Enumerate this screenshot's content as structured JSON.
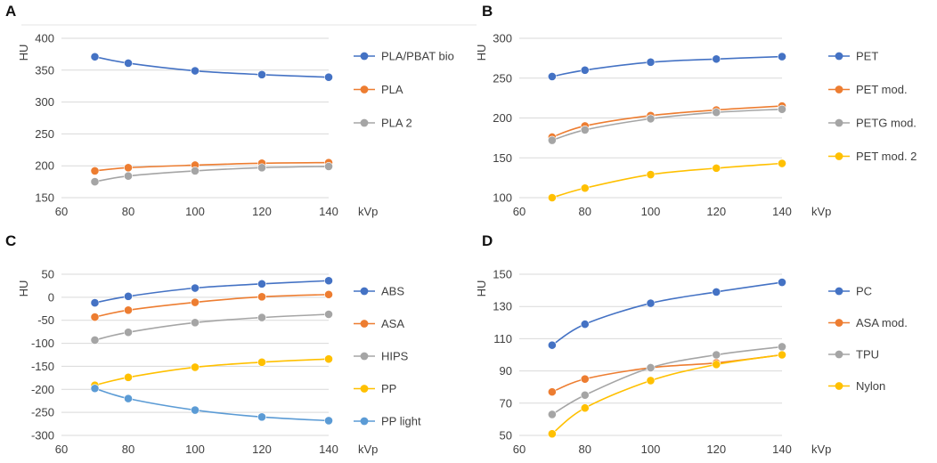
{
  "colors": {
    "blue": "#4472C4",
    "orange": "#ED7D31",
    "gray": "#A5A5A5",
    "yellow": "#FFC000",
    "lightblue": "#5B9BD5",
    "grid": "#D9D9D9"
  },
  "chart_data": [
    {
      "panel": "A",
      "type": "line",
      "xlabel": "kVp",
      "ylabel": "HU",
      "x": [
        70,
        80,
        100,
        120,
        140
      ],
      "xticks": [
        60,
        80,
        100,
        120,
        140
      ],
      "xlim": [
        60,
        140
      ],
      "ylim": [
        150,
        400
      ],
      "yticks": [
        150,
        200,
        250,
        300,
        350,
        400
      ],
      "grid": "horizontal",
      "legend": "right",
      "series": [
        {
          "name": "PLA/PBAT bio",
          "color": "blue",
          "values": [
            371,
            361,
            349,
            343,
            339
          ]
        },
        {
          "name": "PLA",
          "color": "orange",
          "values": [
            192,
            197,
            201,
            204,
            205
          ]
        },
        {
          "name": "PLA 2",
          "color": "gray",
          "values": [
            175,
            184,
            192,
            197,
            199
          ]
        }
      ]
    },
    {
      "panel": "B",
      "type": "line",
      "xlabel": "kVp",
      "ylabel": "HU",
      "x": [
        70,
        80,
        100,
        120,
        140
      ],
      "xticks": [
        60,
        80,
        100,
        120,
        140
      ],
      "xlim": [
        60,
        140
      ],
      "ylim": [
        100,
        300
      ],
      "yticks": [
        100,
        150,
        200,
        250,
        300
      ],
      "grid": "horizontal",
      "legend": "right",
      "series": [
        {
          "name": "PET",
          "color": "blue",
          "values": [
            252,
            260,
            270,
            274,
            277
          ]
        },
        {
          "name": "PET mod.",
          "color": "orange",
          "values": [
            176,
            190,
            203,
            210,
            215
          ]
        },
        {
          "name": "PETG mod.",
          "color": "gray",
          "values": [
            172,
            185,
            199,
            207,
            211
          ]
        },
        {
          "name": "PET mod. 2",
          "color": "yellow",
          "values": [
            100,
            112,
            129,
            137,
            143
          ]
        }
      ]
    },
    {
      "panel": "C",
      "type": "line",
      "xlabel": "kVp",
      "ylabel": "HU",
      "x": [
        70,
        80,
        100,
        120,
        140
      ],
      "xticks": [
        60,
        80,
        100,
        120,
        140
      ],
      "xlim": [
        60,
        140
      ],
      "ylim": [
        -300,
        50
      ],
      "yticks": [
        -300,
        -250,
        -200,
        -150,
        -100,
        -50,
        0,
        50
      ],
      "grid": "horizontal",
      "legend": "right",
      "series": [
        {
          "name": "ABS",
          "color": "blue",
          "values": [
            -12,
            2,
            20,
            29,
            36
          ]
        },
        {
          "name": "ASA",
          "color": "orange",
          "values": [
            -43,
            -28,
            -11,
            1,
            6
          ]
        },
        {
          "name": "HIPS",
          "color": "gray",
          "values": [
            -93,
            -76,
            -55,
            -44,
            -37
          ]
        },
        {
          "name": "PP",
          "color": "yellow",
          "values": [
            -191,
            -174,
            -152,
            -141,
            -134
          ]
        },
        {
          "name": "PP light",
          "color": "lightblue",
          "values": [
            -198,
            -220,
            -245,
            -260,
            -268
          ]
        }
      ]
    },
    {
      "panel": "D",
      "type": "line",
      "xlabel": "kVp",
      "ylabel": "HU",
      "x": [
        70,
        80,
        100,
        120,
        140
      ],
      "xticks": [
        60,
        80,
        100,
        120,
        140
      ],
      "xlim": [
        60,
        140
      ],
      "ylim": [
        50,
        150
      ],
      "yticks": [
        50,
        70,
        90,
        110,
        130,
        150
      ],
      "grid": "horizontal",
      "legend": "right",
      "series": [
        {
          "name": "PC",
          "color": "blue",
          "values": [
            106,
            119,
            132,
            139,
            145
          ]
        },
        {
          "name": "ASA mod.",
          "color": "orange",
          "values": [
            77,
            85,
            92,
            95,
            100
          ]
        },
        {
          "name": "TPU",
          "color": "gray",
          "values": [
            63,
            75,
            92,
            100,
            105
          ]
        },
        {
          "name": "Nylon",
          "color": "yellow",
          "values": [
            51,
            67,
            84,
            94,
            100
          ]
        }
      ]
    }
  ]
}
